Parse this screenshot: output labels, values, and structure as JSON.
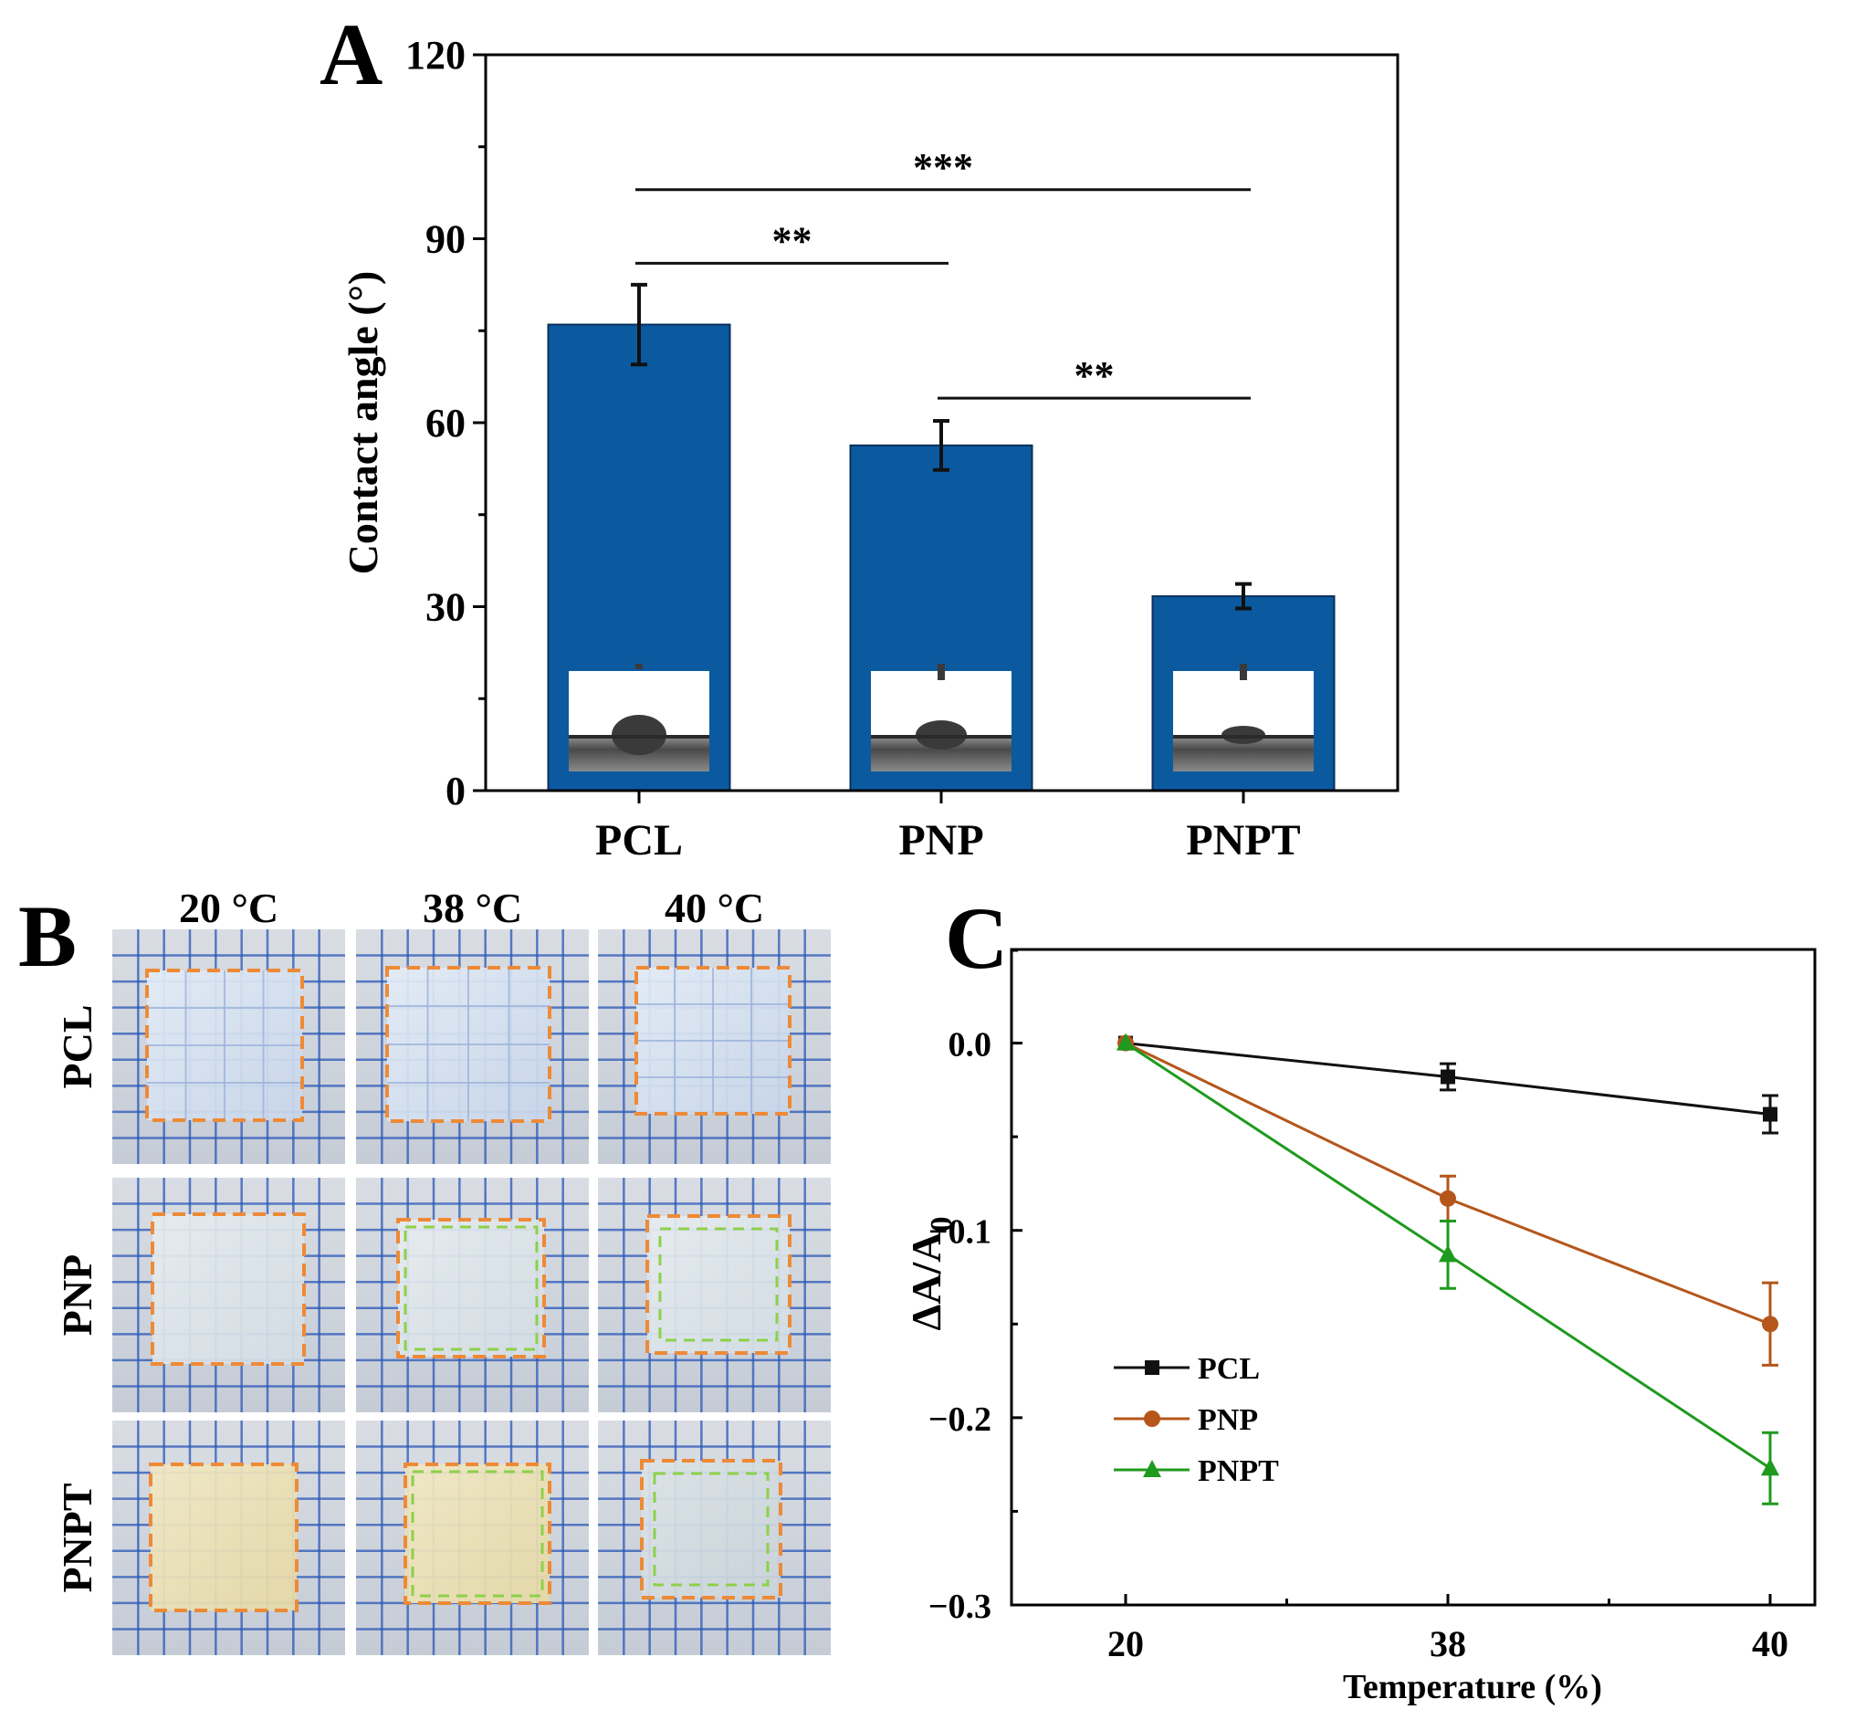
{
  "figure": {
    "panels": [
      "A",
      "B",
      "C"
    ]
  },
  "colors": {
    "bar_fill": "#0b5aa0",
    "bar_stroke": "#0a2f5c",
    "axis": "#000000",
    "pcl": "#111111",
    "pnp": "#b5561a",
    "pnpt": "#1e9a1e",
    "dash_orange": "#ee8a36",
    "dash_green": "#8ed04a",
    "grid_blue": "#2a57b8"
  },
  "chart_data": [
    {
      "panel": "A",
      "type": "bar",
      "title": "",
      "xlabel": "",
      "ylabel": "Contact angle (°)",
      "categories": [
        "PCL",
        "PNP",
        "PNPT"
      ],
      "values": [
        76,
        56.3,
        31.7
      ],
      "errors": [
        6.5,
        4.0,
        2.0
      ],
      "ylim": [
        0,
        120
      ],
      "yticks": [
        0,
        30,
        60,
        90,
        120
      ],
      "significance": [
        {
          "from": 0,
          "to": 1,
          "label": "**",
          "y": 86
        },
        {
          "from": 1,
          "to": 2,
          "label": "**",
          "y": 64
        },
        {
          "from": 0,
          "to": 2,
          "label": "***",
          "y": 98
        }
      ],
      "insets": [
        "droplet-image",
        "droplet-image",
        "droplet-image"
      ]
    },
    {
      "panel": "C",
      "type": "line",
      "title": "",
      "xlabel": "Temperature (%)",
      "ylabel": "ΔA/A0",
      "x": [
        20,
        38,
        40
      ],
      "xtick_labels": [
        "20",
        "38",
        "40"
      ],
      "ylim": [
        -0.3,
        0.05
      ],
      "yticks": [
        0.0,
        -0.1,
        -0.2,
        -0.3
      ],
      "ytick_labels": [
        "0.0",
        "−0.1",
        "−0.2",
        "−0.3"
      ],
      "legend_position": "bottom-left",
      "series": [
        {
          "name": "PCL",
          "marker": "square",
          "values": [
            0.0,
            -0.018,
            -0.038
          ],
          "errors": [
            0.0,
            0.007,
            0.01
          ]
        },
        {
          "name": "PNP",
          "marker": "circle",
          "values": [
            0.0,
            -0.083,
            -0.15
          ],
          "errors": [
            0.0,
            0.012,
            0.022
          ]
        },
        {
          "name": "PNPT",
          "marker": "triangle",
          "values": [
            0.0,
            -0.113,
            -0.227
          ],
          "errors": [
            0.0,
            0.018,
            0.019
          ]
        }
      ]
    }
  ],
  "photo_grid": {
    "panel": "B",
    "columns": [
      "20 °C",
      "38 °C",
      "40 °C"
    ],
    "rows": [
      "PCL",
      "PNP",
      "PNPT"
    ]
  }
}
